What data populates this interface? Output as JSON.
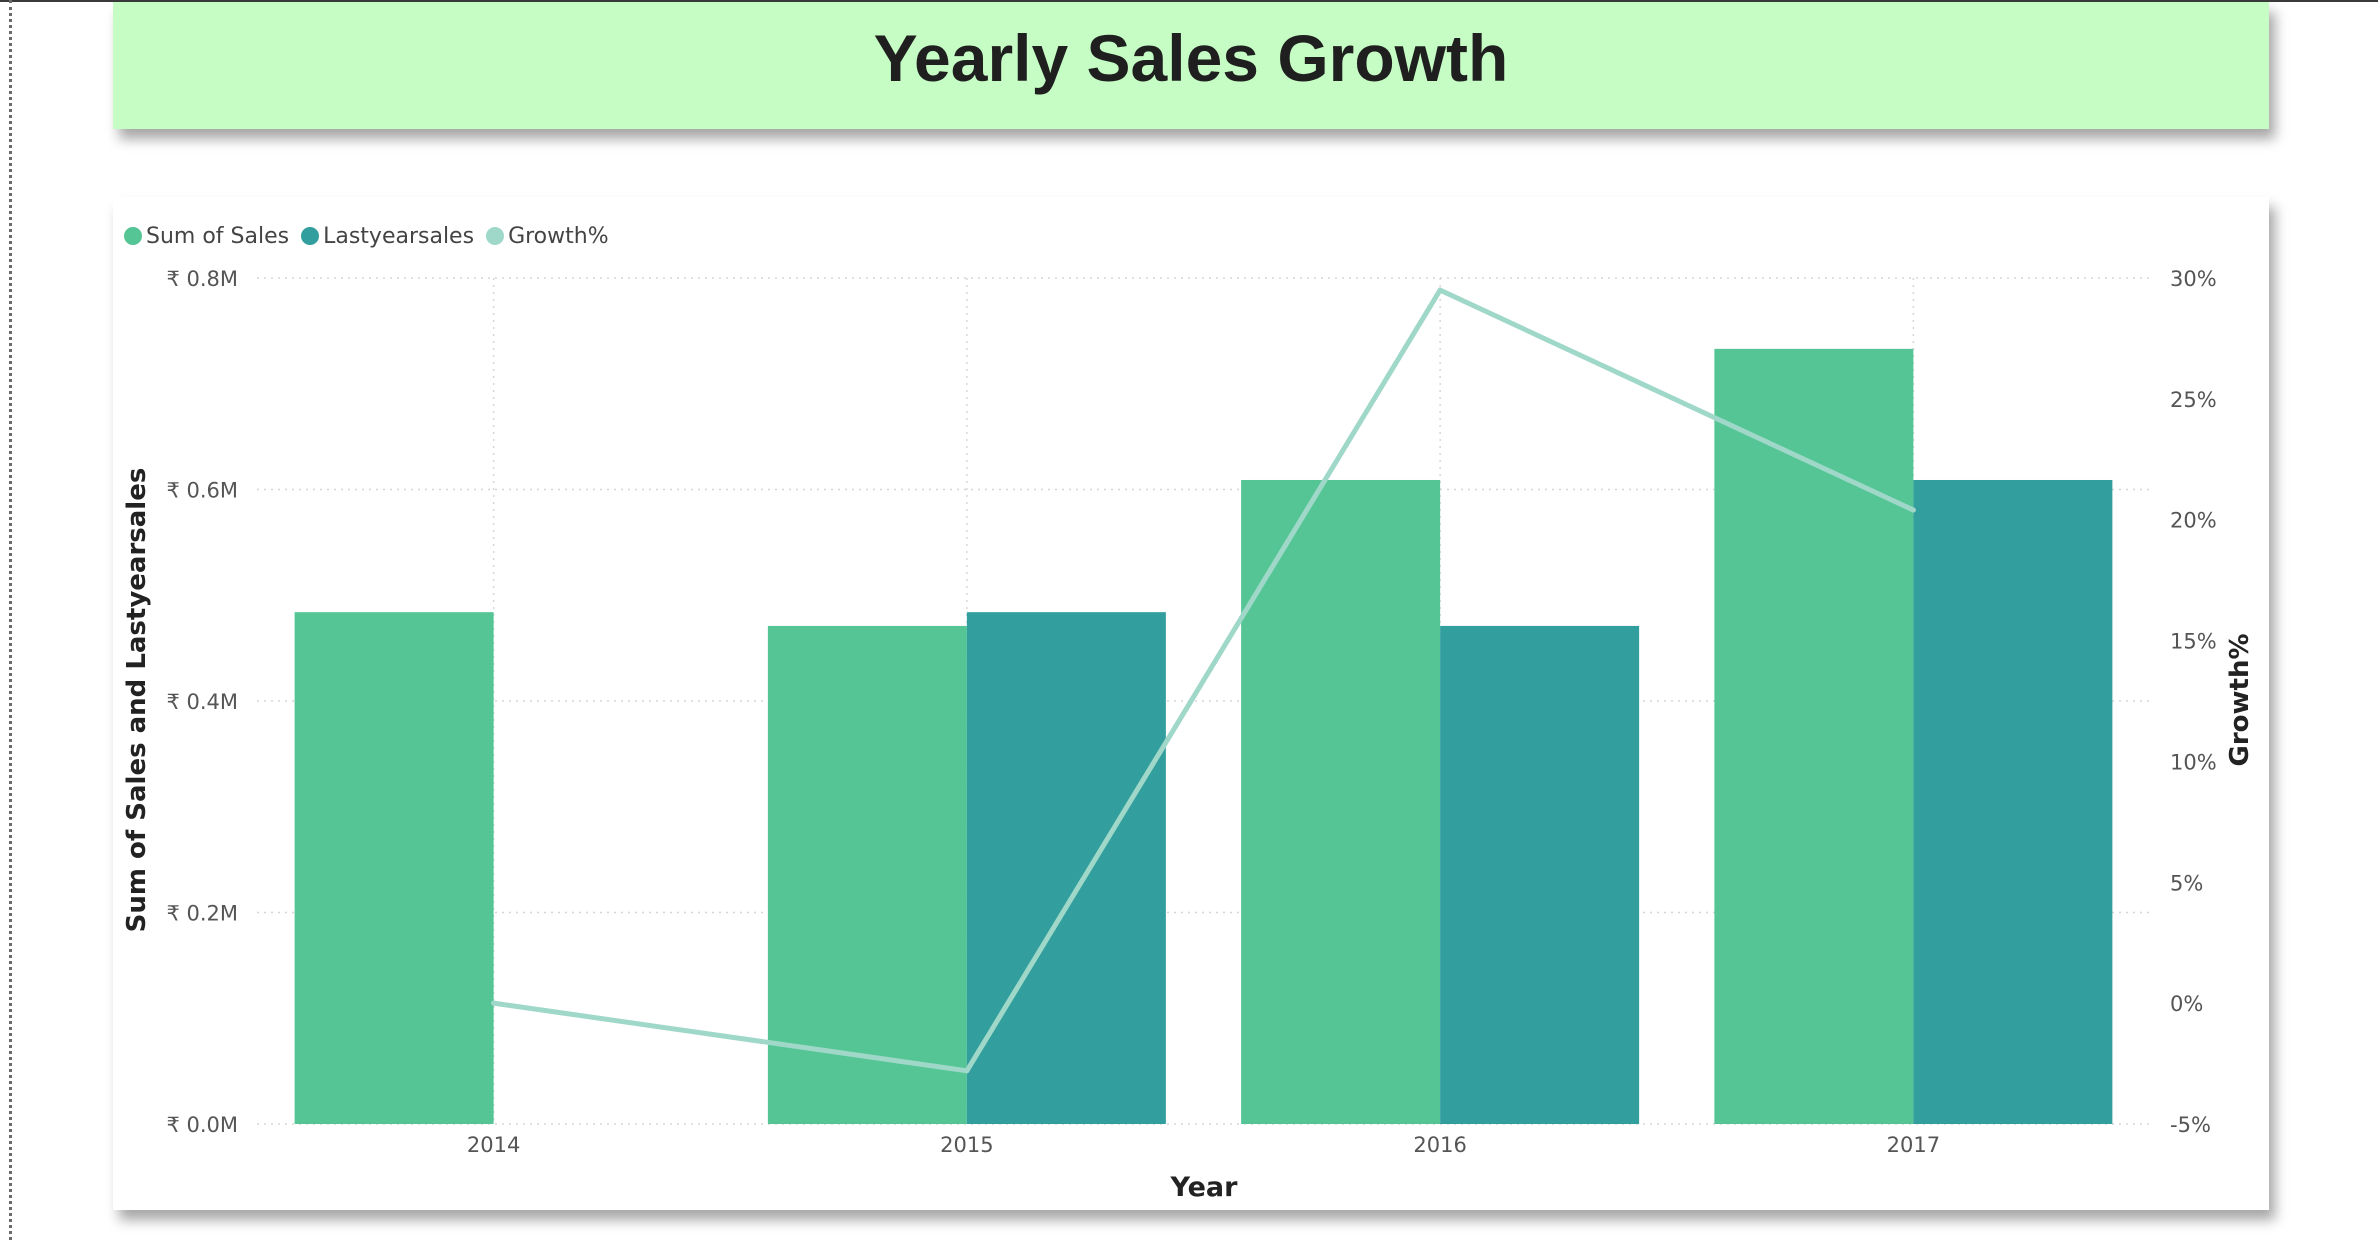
{
  "title": "Yearly Sales Growth",
  "legend": [
    {
      "label": "Sum of Sales",
      "color": "#55c595"
    },
    {
      "label": "Lastyearsales",
      "color": "#339e9e"
    },
    {
      "label": "Growth%",
      "color": "#9fd8c8"
    }
  ],
  "chart_data": {
    "type": "bar",
    "categories": [
      "2014",
      "2015",
      "2016",
      "2017"
    ],
    "series": [
      {
        "name": "Sum of Sales",
        "type": "bar",
        "axis": "left",
        "color": "#55c595",
        "values": [
          0.484,
          0.471,
          0.609,
          0.733
        ]
      },
      {
        "name": "Lastyearsales",
        "type": "bar",
        "axis": "left",
        "color": "#339e9e",
        "values": [
          null,
          0.484,
          0.471,
          0.609
        ]
      },
      {
        "name": "Growth%",
        "type": "line",
        "axis": "right",
        "color": "#9fd8c8",
        "values": [
          0,
          -2.8,
          29.5,
          20.4
        ]
      }
    ],
    "xlabel": "Year",
    "ylabel": "Sum of Sales and Lastyearsales",
    "y2label": "Growth%",
    "ylim": [
      0,
      0.8
    ],
    "y2lim": [
      -5,
      30
    ],
    "yticks": [
      "₹ 0.0M",
      "₹ 0.2M",
      "₹ 0.4M",
      "₹ 0.6M",
      "₹ 0.8M"
    ],
    "yticks_values": [
      0,
      0.2,
      0.4,
      0.6,
      0.8
    ],
    "y2ticks": [
      "-5%",
      "0%",
      "5%",
      "10%",
      "15%",
      "20%",
      "25%",
      "30%"
    ],
    "y2ticks_values": [
      -5,
      0,
      5,
      10,
      15,
      20,
      25,
      30
    ],
    "grid": true,
    "legend_position": "top-left"
  }
}
